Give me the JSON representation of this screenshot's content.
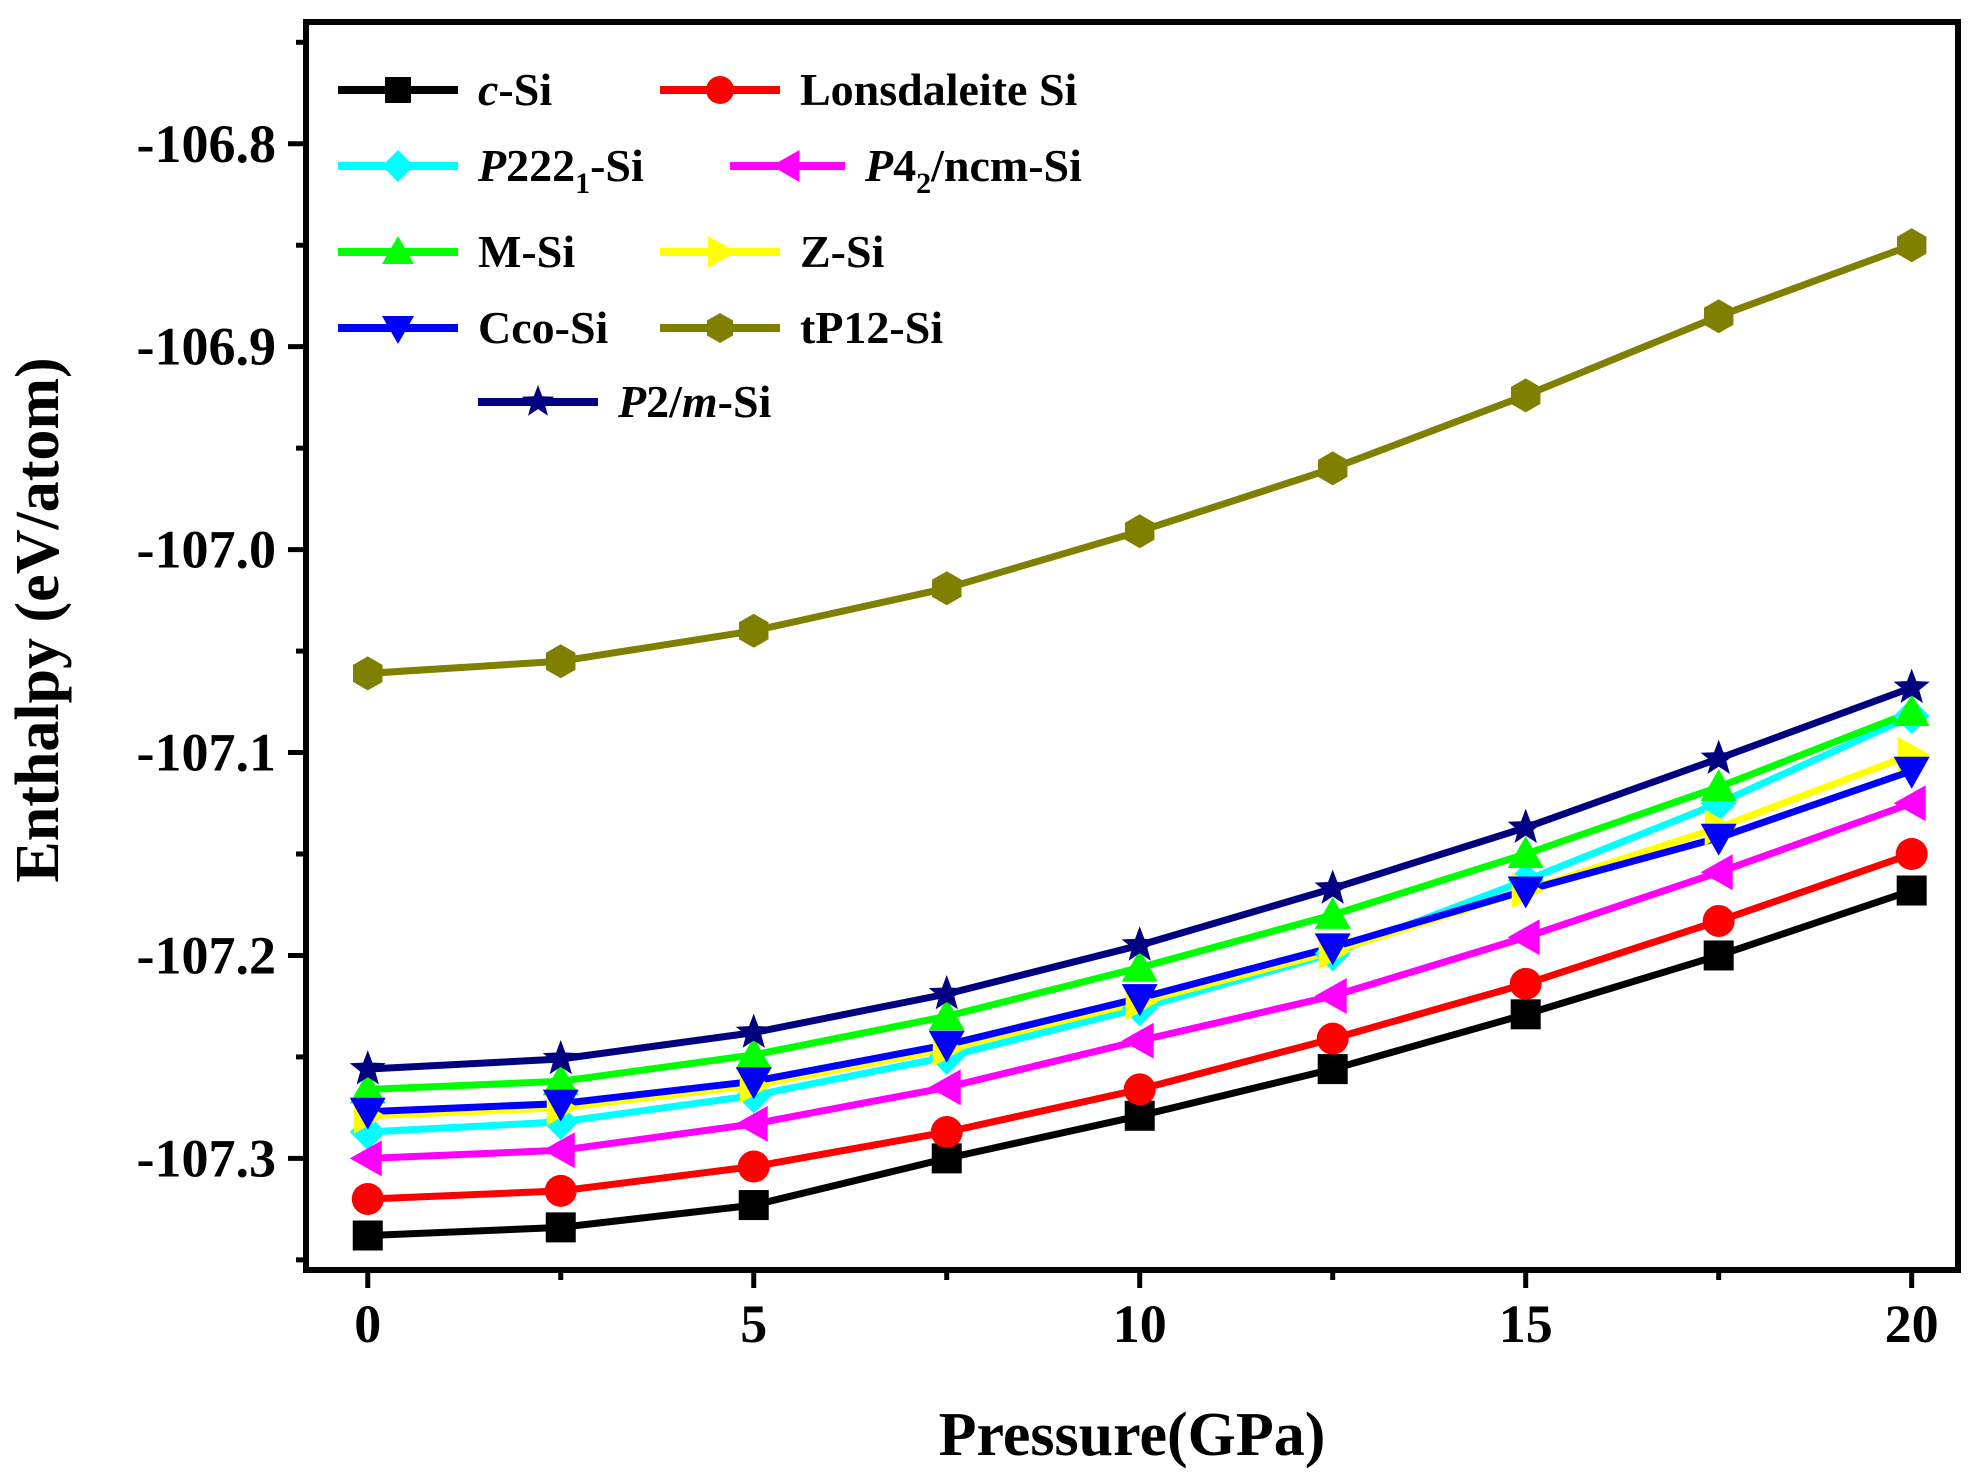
{
  "chart_data": {
    "type": "line",
    "title": "",
    "xlabel": "Pressure(GPa)",
    "ylabel": "Enthalpy (eV/atom)",
    "xlim": [
      -0.8,
      20.6
    ],
    "ylim": [
      -107.355,
      -106.74
    ],
    "xticks": [
      0,
      5,
      10,
      15,
      20
    ],
    "xtick_labels": [
      "0",
      "5",
      "10",
      "15",
      "20"
    ],
    "yticks": [
      -107.3,
      -107.2,
      -107.1,
      -107.0,
      -106.9,
      -106.8
    ],
    "ytick_labels": [
      "-107.3",
      "-107.2",
      "-107.1",
      "-107.0",
      "-106.9",
      "-106.8"
    ],
    "grid": false,
    "legend_position": "top-left",
    "x": [
      0,
      2.5,
      5,
      7.5,
      10,
      12.5,
      15,
      17.5,
      20
    ],
    "series": [
      {
        "name": "c-Si",
        "prefix": "c",
        "suffix": "-Si",
        "sub": "",
        "rest": "",
        "color": "#000000",
        "marker": "square",
        "values": [
          -107.338,
          -107.334,
          -107.323,
          -107.3,
          -107.279,
          -107.256,
          -107.229,
          -107.2,
          -107.168
        ]
      },
      {
        "name": "Lonsdaleite Si",
        "prefix": "",
        "suffix": "Lonsdaleite Si",
        "sub": "",
        "rest": "",
        "color": "#ff0000",
        "marker": "circle",
        "values": [
          -107.32,
          -107.316,
          -107.304,
          -107.287,
          -107.266,
          -107.241,
          -107.214,
          -107.183,
          -107.15
        ]
      },
      {
        "name": "P2221-Si",
        "prefix": "P",
        "suffix": "222",
        "sub": "1",
        "rest": "-Si",
        "color": "#00ffff",
        "marker": "diamond",
        "values": [
          -107.287,
          -107.282,
          -107.269,
          -107.25,
          -107.226,
          -107.199,
          -107.163,
          -107.125,
          -107.082
        ]
      },
      {
        "name": "P42/ncm-Si",
        "prefix": "P",
        "suffix": "4",
        "sub": "2",
        "rest": "/ncm-Si",
        "color": "#ff00ff",
        "marker": "triangle-left",
        "values": [
          -107.3,
          -107.296,
          -107.283,
          -107.265,
          -107.242,
          -107.22,
          -107.191,
          -107.159,
          -107.125
        ]
      },
      {
        "name": "M-Si",
        "prefix": "",
        "suffix": "M-Si",
        "sub": "",
        "rest": "",
        "color": "#00ff00",
        "marker": "triangle-up",
        "values": [
          -107.266,
          -107.262,
          -107.249,
          -107.23,
          -107.206,
          -107.18,
          -107.15,
          -107.117,
          -107.08
        ]
      },
      {
        "name": "Z-Si",
        "prefix": "",
        "suffix": "Z-Si",
        "sub": "",
        "rest": "",
        "color": "#ffff00",
        "marker": "triangle-right",
        "values": [
          -107.279,
          -107.275,
          -107.264,
          -107.246,
          -107.223,
          -107.198,
          -107.168,
          -107.137,
          -107.101
        ]
      },
      {
        "name": "Cco-Si",
        "prefix": "",
        "suffix": "Cco-Si",
        "sub": "",
        "rest": "",
        "color": "#0000ff",
        "marker": "triangle-down",
        "values": [
          -107.277,
          -107.273,
          -107.262,
          -107.244,
          -107.221,
          -107.196,
          -107.168,
          -107.142,
          -107.109
        ]
      },
      {
        "name": "tP12-Si",
        "prefix": "",
        "suffix": "tP12-Si",
        "sub": "",
        "rest": "",
        "color": "#808000",
        "marker": "hexagon",
        "values": [
          -107.061,
          -107.055,
          -107.04,
          -107.019,
          -106.991,
          -106.96,
          -106.924,
          -106.885,
          -106.85
        ]
      },
      {
        "name": "P2/m-Si",
        "prefix": "P",
        "suffix": "2/",
        "sub": "",
        "rest": "",
        "italic_tail": "m",
        "tail": "-Si",
        "color": "#000080",
        "marker": "star",
        "values": [
          -107.256,
          -107.251,
          -107.238,
          -107.219,
          -107.195,
          -107.167,
          -107.137,
          -107.103,
          -107.068
        ]
      }
    ]
  }
}
